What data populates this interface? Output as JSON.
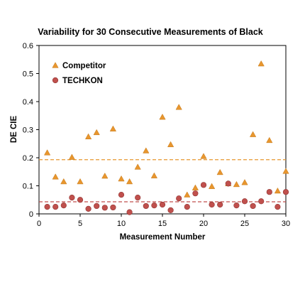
{
  "chart_data": {
    "type": "scatter",
    "title": "Variability for 30 Consecutive Measurements of Black",
    "xlabel": "Measurement Number",
    "ylabel": "DE CIE",
    "xlim": [
      0,
      30
    ],
    "ylim": [
      0,
      0.6
    ],
    "x_ticks": [
      0,
      5,
      10,
      15,
      20,
      25,
      30
    ],
    "y_ticks": [
      0,
      0.1,
      0.2,
      0.3,
      0.4,
      0.5,
      0.6
    ],
    "x_tick_labels": [
      "0",
      "5",
      "10",
      "15",
      "20",
      "25",
      "30"
    ],
    "y_tick_labels": [
      "0",
      "0.1",
      "0.2",
      "0.3",
      "0.4",
      "0.5",
      "0.6"
    ],
    "grid": false,
    "legend_position": "top-left",
    "x": [
      1,
      2,
      3,
      4,
      5,
      6,
      7,
      8,
      9,
      10,
      11,
      12,
      13,
      14,
      15,
      16,
      17,
      18,
      19,
      20,
      21,
      22,
      23,
      24,
      25,
      26,
      27,
      28,
      29,
      30
    ],
    "series": [
      {
        "name": "Competitor",
        "marker": "triangle",
        "color": "#E8962E",
        "values": [
          0.218,
          0.132,
          0.115,
          0.202,
          0.115,
          0.275,
          0.29,
          0.135,
          0.303,
          0.125,
          0.115,
          0.167,
          0.225,
          0.136,
          0.345,
          0.247,
          0.38,
          0.068,
          0.093,
          0.205,
          0.098,
          0.148,
          0.108,
          0.105,
          0.112,
          0.283,
          0.535,
          0.262,
          0.082,
          0.152
        ]
      },
      {
        "name": "TECHKON",
        "marker": "circle",
        "color": "#C0504D",
        "values": [
          0.025,
          0.025,
          0.03,
          0.058,
          0.05,
          0.018,
          0.028,
          0.022,
          0.023,
          0.068,
          0.006,
          0.058,
          0.028,
          0.03,
          0.033,
          0.013,
          0.055,
          0.025,
          0.073,
          0.103,
          0.033,
          0.033,
          0.108,
          0.03,
          0.045,
          0.028,
          0.045,
          0.078,
          0.025,
          0.078
        ]
      }
    ],
    "reference_lines": [
      {
        "series": "Competitor",
        "y": 0.193,
        "style": "dashed",
        "color": "#E8962E"
      },
      {
        "series": "TECHKON",
        "y": 0.043,
        "style": "dashed",
        "color": "#C0504D"
      }
    ]
  }
}
